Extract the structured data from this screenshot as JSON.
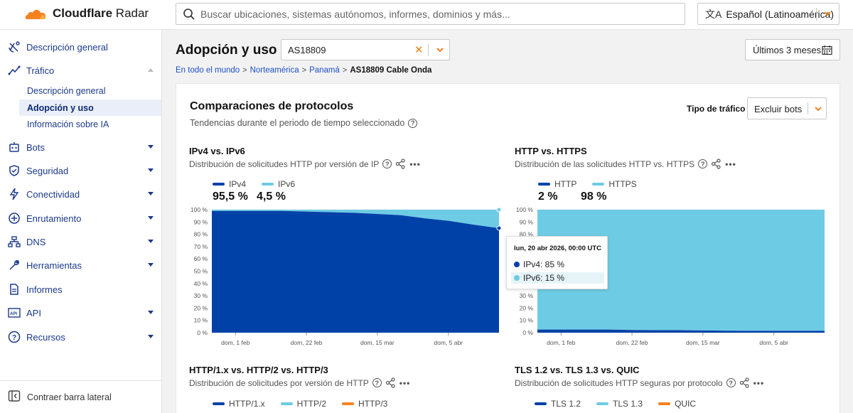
{
  "header": {
    "brand_bold": "Cloudflare",
    "brand_rest": " Radar",
    "search_placeholder": "Buscar ubicaciones, sistemas autónomos, informes, dominios y más...",
    "language": "Español (Latinoamérica)"
  },
  "sidebar": {
    "items": [
      {
        "label": "Descripción general",
        "icon": "satellite-dish-icon"
      },
      {
        "label": "Tráfico",
        "icon": "trend-line-icon"
      },
      {
        "label": "Bots",
        "icon": "bot-icon"
      },
      {
        "label": "Seguridad",
        "icon": "shield-icon"
      },
      {
        "label": "Conectividad",
        "icon": "lightning-icon"
      },
      {
        "label": "Enrutamiento",
        "icon": "routing-icon"
      },
      {
        "label": "DNS",
        "icon": "dns-network-icon"
      },
      {
        "label": "Herramientas",
        "icon": "wrench-icon"
      },
      {
        "label": "Informes",
        "icon": "document-icon"
      },
      {
        "label": "API",
        "icon": "api-icon"
      },
      {
        "label": "Recursos",
        "icon": "help-circle-icon"
      }
    ],
    "traffic_sub": [
      "Descripción general",
      "Adopción y uso",
      "Información sobre IA"
    ],
    "collapse_label": "Contraer barra lateral"
  },
  "page": {
    "title": "Adopción y uso",
    "asn_value": "AS18809",
    "date_range": "Últimos 3 meses",
    "breadcrumb": [
      "En todo el mundo",
      "Norteamérica",
      "Panamá",
      "AS18809 Cable Onda"
    ]
  },
  "card": {
    "title": "Comparaciones de protocolos",
    "subtitle": "Tendencias durante el periodo de tiempo seleccionado",
    "traffic_type_label": "Tipo de tráfico",
    "traffic_type_value": "Excluir bots"
  },
  "panels": {
    "ip": {
      "title": "IPv4 vs. IPv6",
      "subtitle": "Distribución de solicitudes HTTP por versión de IP",
      "legend": [
        {
          "name": "IPv4",
          "color": "#0041a8",
          "value": "95,5 %"
        },
        {
          "name": "IPv6",
          "color": "#6ecbe4",
          "value": "4,5 %"
        }
      ]
    },
    "http": {
      "title": "HTTP vs. HTTPS",
      "subtitle": "Distribución de las solicitudes HTTP vs. HTTPS",
      "legend": [
        {
          "name": "HTTP",
          "color": "#0041a8",
          "value": "2 %"
        },
        {
          "name": "HTTPS",
          "color": "#6ecbe4",
          "value": "98 %"
        }
      ]
    },
    "httpver": {
      "title": "HTTP/1.x vs. HTTP/2 vs. HTTP/3",
      "subtitle": "Distribución de solicitudes por versión de HTTP",
      "legend": [
        {
          "name": "HTTP/1.x",
          "color": "#0041a8"
        },
        {
          "name": "HTTP/2",
          "color": "#6ecbe4"
        },
        {
          "name": "HTTP/3",
          "color": "#f6821f"
        }
      ]
    },
    "tls": {
      "title": "TLS 1.2 vs. TLS 1.3 vs. QUIC",
      "subtitle": "Distribución de solicitudes HTTP seguras por protocolo",
      "legend": [
        {
          "name": "TLS 1.2",
          "color": "#0041a8"
        },
        {
          "name": "TLS 1.3",
          "color": "#6ecbe4"
        },
        {
          "name": "QUIC",
          "color": "#f6821f"
        }
      ]
    }
  },
  "tooltip": {
    "title": "lun, 20 abr 2026, 00:00 UTC",
    "rows": [
      "IPv4: 85 %",
      "IPv6: 15 %"
    ]
  },
  "chart_data": [
    {
      "type": "area",
      "title": "IPv4 vs. IPv6",
      "stacked": true,
      "ylim": [
        0,
        100
      ],
      "yticks": [
        "100 %",
        "90 %",
        "80 %",
        "70 %",
        "60 %",
        "50 %",
        "40 %",
        "30 %",
        "20 %",
        "10 %",
        "0 %"
      ],
      "xticks": [
        "dom, 1 feb",
        "dom, 22 feb",
        "dom, 15 mar",
        "dom, 5 abr"
      ],
      "x": [
        "2026-01-25",
        "2026-02-01",
        "2026-02-08",
        "2026-02-15",
        "2026-02-22",
        "2026-03-01",
        "2026-03-08",
        "2026-03-15",
        "2026-03-22",
        "2026-03-29",
        "2026-04-05",
        "2026-04-12",
        "2026-04-20"
      ],
      "series": [
        {
          "name": "IPv4",
          "color": "#0041a8",
          "values": [
            99,
            99,
            99,
            99,
            98.5,
            98,
            97.5,
            96.5,
            95.5,
            93,
            91,
            88,
            85
          ]
        },
        {
          "name": "IPv6",
          "color": "#6ecbe4",
          "values": [
            1,
            1,
            1,
            1,
            1.5,
            2,
            2.5,
            3.5,
            4.5,
            7,
            9,
            12,
            15
          ]
        }
      ]
    },
    {
      "type": "area",
      "title": "HTTP vs. HTTPS",
      "stacked": true,
      "ylim": [
        0,
        100
      ],
      "yticks": [
        "100 %",
        "90 %",
        "80 %",
        "70 %",
        "60 %",
        "50 %",
        "40 %",
        "30 %",
        "20 %",
        "10 %",
        "0 %"
      ],
      "xticks": [
        "dom, 1 feb",
        "dom, 22 feb",
        "dom, 15 mar",
        "dom, 5 abr"
      ],
      "x": [
        "2026-01-25",
        "2026-02-01",
        "2026-02-08",
        "2026-02-15",
        "2026-02-22",
        "2026-03-01",
        "2026-03-08",
        "2026-03-15",
        "2026-03-22",
        "2026-03-29",
        "2026-04-05",
        "2026-04-12",
        "2026-04-20"
      ],
      "series": [
        {
          "name": "HTTP",
          "color": "#0041a8",
          "values": [
            2.5,
            2.5,
            2.5,
            2.5,
            2.2,
            2,
            2,
            1.8,
            1.6,
            1.5,
            1.5,
            1.5,
            1.5
          ]
        },
        {
          "name": "HTTPS",
          "color": "#6ecbe4",
          "values": [
            97.5,
            97.5,
            97.5,
            97.5,
            97.8,
            98,
            98,
            98.2,
            98.4,
            98.5,
            98.5,
            98.5,
            98.5
          ]
        }
      ]
    }
  ]
}
